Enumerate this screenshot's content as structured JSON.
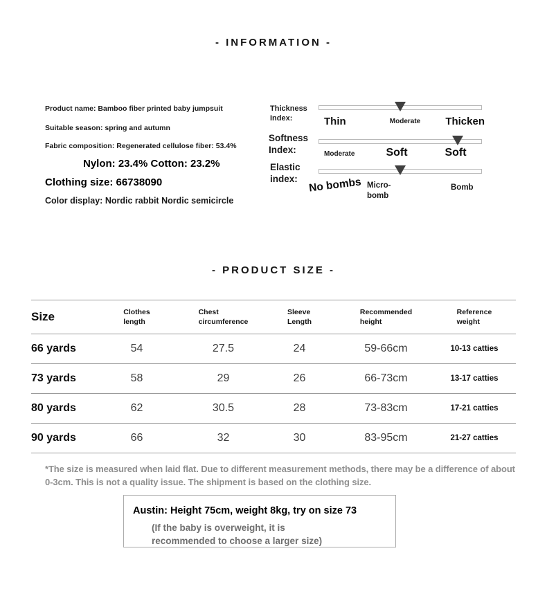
{
  "colors": {
    "background": "#ffffff",
    "text_black": "#111111",
    "table_line_gray": "#9b9b9b",
    "footnote_gray": "#8e8e8e",
    "note_gray": "#6f6f6f",
    "slider_track_border": "#b9b9b9",
    "slider_marker": "#3f3f3f"
  },
  "info": {
    "title": "- INFORMATION -",
    "details": {
      "product_name": "Product name: Bamboo fiber printed baby jumpsuit",
      "season": "Suitable season: spring and autumn",
      "fabric": "Fabric composition: Regenerated cellulose fiber: 53.4%",
      "composition": "Nylon: 23.4% Cotton: 23.2%",
      "clothing_size": "Clothing size: 66738090",
      "color_display": "Color display: Nordic rabbit Nordic semicircle"
    },
    "indices": {
      "thickness": {
        "label1": "Thickness",
        "label2": "Index:",
        "left": "Thin",
        "center": "Moderate",
        "right": "Thicken",
        "marker_percent": 50,
        "selected_level": "Moderate"
      },
      "softness": {
        "label1": "Softness",
        "label2": "Index:",
        "left": "Moderate",
        "center": "Soft",
        "right": "Soft",
        "marker_percent": 85,
        "selected_level": "Soft"
      },
      "elastic": {
        "label1": "Elastic",
        "label2": "index:",
        "left": "No bombs",
        "center1": "Micro-",
        "center2": "bomb",
        "right": "Bomb",
        "marker_percent": 50,
        "selected_level": "Micro-bomb"
      }
    }
  },
  "size": {
    "title": "- PRODUCT SIZE -",
    "table": {
      "headers": {
        "size": "Size",
        "clothes": {
          "l1": "Clothes",
          "l2": "length"
        },
        "chest": {
          "l1": "Chest",
          "l2": "circumference"
        },
        "sleeve": {
          "l1": "Sleeve",
          "l2": "Length"
        },
        "height": {
          "l1": "Recommended",
          "l2": "height"
        },
        "weight": {
          "l1": "Reference",
          "l2": "weight"
        }
      },
      "rows": [
        {
          "size": "66 yards",
          "clothes": "54",
          "chest": "27.5",
          "sleeve": "24",
          "height": "59-66cm",
          "weight": "10-13 catties"
        },
        {
          "size": "73 yards",
          "clothes": "58",
          "chest": "29",
          "sleeve": "26",
          "height": "66-73cm",
          "weight": "13-17 catties"
        },
        {
          "size": "80 yards",
          "clothes": "62",
          "chest": "30.5",
          "sleeve": "28",
          "height": "73-83cm",
          "weight": "17-21 catties"
        },
        {
          "size": "90 yards",
          "clothes": "66",
          "chest": "32",
          "sleeve": "30",
          "height": "83-95cm",
          "weight": "21-27 catties"
        }
      ]
    },
    "footnote": "*The size is measured when laid flat. Due to different measurement methods, there may be a difference of about 0-3cm. This is not a quality issue. The shipment is based on the clothing size.",
    "model_box": {
      "main": "Austin: Height 75cm, weight 8kg, try on size 73",
      "note": "(If the baby is overweight, it is recommended to choose a larger size)"
    }
  }
}
